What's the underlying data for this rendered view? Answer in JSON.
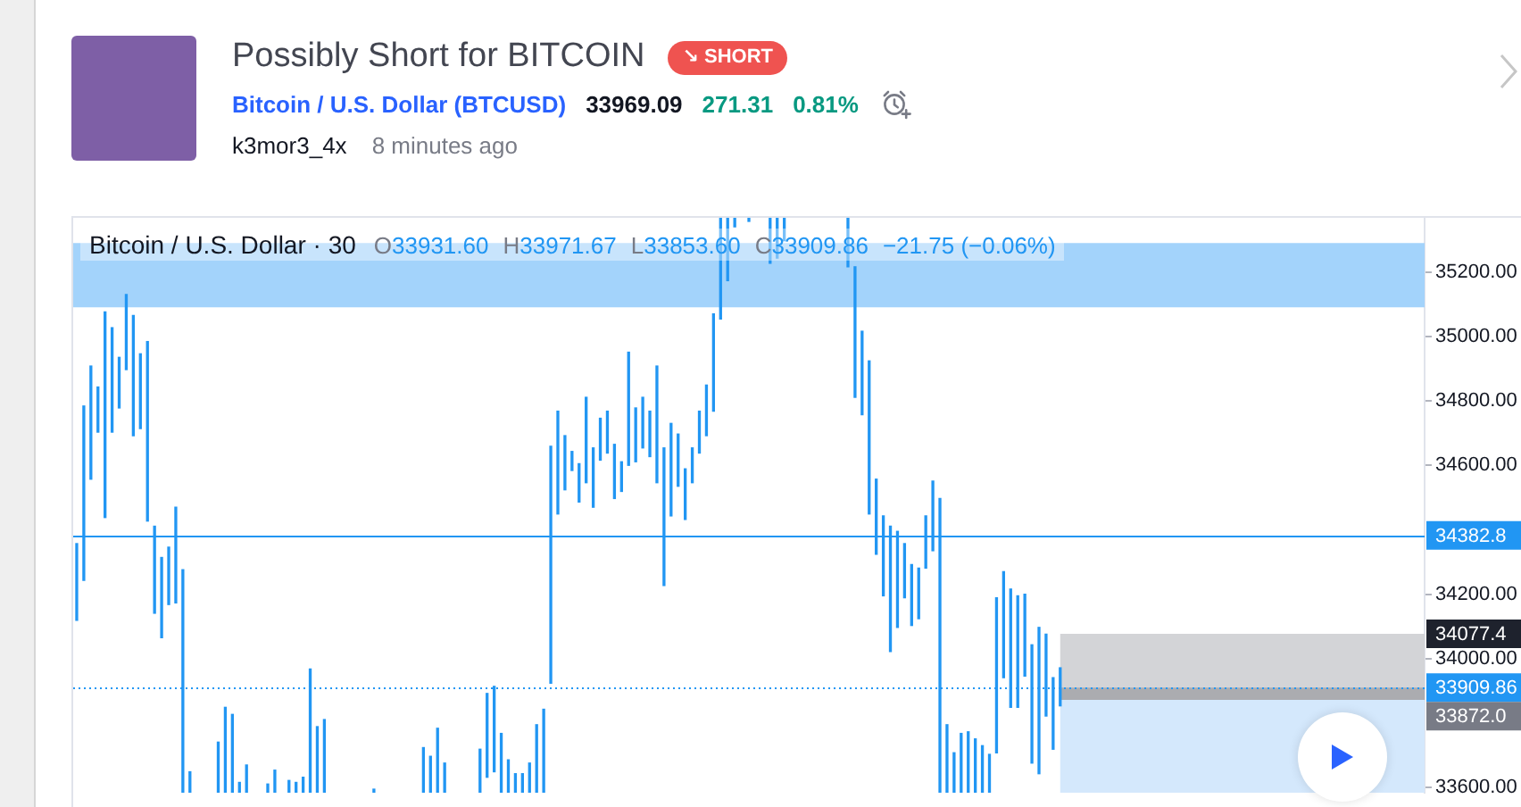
{
  "chart_data": {
    "type": "bar",
    "title": "Possibly Short for BITCOIN",
    "subtitle": "Bitcoin / U.S. Dollar (BTCUSD)",
    "annotations": [
      "↘ SHORT",
      "33969.09",
      "271.31",
      "0.81%",
      "k3mor3_4x",
      "8 minutes ago",
      "Bitcoin / U.S. Dollar · 30",
      "O33931.60",
      "H33971.67",
      "L33853.60",
      "C33909.86",
      "−21.75 (−0.06%)"
    ],
    "categories": [
      null,
      null,
      null,
      null,
      null,
      null,
      null,
      null,
      null,
      null,
      null,
      null,
      null,
      null,
      null,
      null,
      null,
      null,
      null,
      null,
      null,
      null,
      null,
      null,
      null,
      null,
      null,
      null,
      null,
      null,
      null,
      null,
      null,
      null,
      null,
      null,
      null,
      null,
      null,
      null,
      null,
      null,
      null,
      null,
      null,
      null,
      null,
      null,
      null,
      null,
      null,
      null,
      null,
      null,
      null,
      null,
      null,
      null,
      null,
      null,
      null,
      null,
      null,
      null,
      null,
      null,
      null,
      null,
      null,
      null,
      null,
      null,
      null,
      null,
      null,
      null,
      null,
      null,
      null,
      null,
      null,
      null,
      null,
      null,
      null,
      null,
      null,
      null,
      null,
      null,
      null,
      null,
      null,
      null,
      null,
      null,
      null,
      null,
      null,
      null,
      null,
      null,
      null,
      null,
      null,
      null,
      null,
      null,
      null,
      null,
      null,
      null,
      null,
      null,
      null,
      null,
      null,
      null,
      null,
      null,
      null,
      null,
      null,
      null,
      null,
      null,
      null,
      null,
      null,
      null,
      null,
      null,
      null,
      null,
      null,
      null,
      null,
      null,
      null,
      null,
      null,
      null,
      null,
      null,
      null,
      null,
      null,
      null,
      null,
      null,
      null,
      null,
      null,
      null,
      null,
      null,
      null,
      null,
      null,
      null,
      null,
      null,
      null,
      null,
      null,
      null,
      null,
      null,
      null,
      null,
      null,
      null,
      null,
      null,
      null,
      null,
      null,
      null,
      null,
      null,
      null,
      null,
      null,
      null,
      null,
      null,
      null,
      null,
      null,
      null,
      null
    ],
    "base": [
      34119,
      34243,
      34557,
      34703,
      34438,
      34703,
      34778,
      34897,
      34692,
      34714,
      34427,
      34141,
      34065,
      34168,
      34173,
      33584,
      33584,
      null,
      null,
      null,
      33584,
      33584,
      33584,
      33584,
      33584,
      null,
      null,
      33584,
      33584,
      null,
      33584,
      33584,
      33584,
      33584,
      33584,
      33584,
      null,
      null,
      null,
      null,
      null,
      null,
      33584,
      null,
      null,
      null,
      null,
      null,
      null,
      33584,
      33584,
      33584,
      33584,
      null,
      null,
      null,
      null,
      33584,
      33632,
      33649,
      33584,
      33584,
      33584,
      33584,
      33584,
      33584,
      33584,
      33924,
      34449,
      34524,
      34584,
      34486,
      34546,
      34470,
      34616,
      34638,
      34497,
      34519,
      34600,
      34611,
      34654,
      34627,
      34546,
      34227,
      34443,
      34535,
      34432,
      34546,
      34638,
      34692,
      34768,
      35054,
      35173,
      35340,
      null,
      35357,
      null,
      null,
      35227,
      35243,
      35297,
      null,
      null,
      null,
      null,
      null,
      null,
      null,
      null,
      35216,
      34811,
      34757,
      34449,
      34324,
      34195,
      34022,
      34097,
      34189,
      34103,
      34124,
      34281,
      34335,
      33584,
      33584,
      33584,
      33584,
      33584,
      33584,
      33584,
      33584,
      33708,
      33941,
      33849,
      33849,
      33946,
      33676,
      33643,
      33822,
      33719,
      33853.6,
      null,
      null,
      null,
      null,
      null,
      null,
      null,
      null,
      null,
      null,
      null,
      null,
      null,
      null,
      null,
      null,
      null,
      null,
      null,
      null,
      null,
      null,
      null,
      null,
      null,
      null,
      null,
      null,
      null,
      null,
      null,
      null,
      null,
      null,
      null,
      null,
      null,
      null,
      null,
      null,
      null,
      null,
      null,
      null,
      null,
      null,
      null,
      null,
      null,
      null,
      null
    ],
    "values": [
      238,
      541,
      351,
      140,
      638,
      324,
      157,
      233,
      373,
      232,
      557,
      270,
      249,
      178,
      297,
      692,
      65,
      null,
      null,
      null,
      157,
      265,
      243,
      32,
      86,
      null,
      null,
      27,
      70,
      null,
      38,
      32,
      48,
      384,
      205,
      227,
      null,
      null,
      null,
      null,
      null,
      null,
      11,
      null,
      null,
      null,
      null,
      null,
      null,
      140,
      113,
      200,
      92,
      null,
      null,
      null,
      null,
      135,
      260,
      265,
      184,
      102,
      59,
      59,
      92,
      211,
      259,
      735,
      319,
      168,
      59,
      119,
      265,
      184,
      130,
      130,
      168,
      92,
      351,
      167,
      157,
      141,
      362,
      427,
      287,
      162,
      157,
      108,
      130,
      157,
      302,
      314,
      195,
      28,
      null,
      11,
      null,
      null,
      141,
      125,
      71,
      null,
      null,
      null,
      null,
      null,
      null,
      null,
      null,
      152,
      405,
      259,
      475,
      233,
      248,
      389,
      298,
      168,
      189,
      157,
      162,
      216,
      913,
      211,
      124,
      184,
      189,
      167,
      146,
      119,
      481,
      329,
      367,
      346,
      254,
      367,
      454,
      254,
      222,
      118,
      null,
      null,
      null,
      null,
      null,
      null,
      null,
      null,
      null,
      null,
      null,
      null,
      null,
      null,
      null,
      null,
      null,
      null,
      null,
      null,
      null,
      null,
      null,
      null,
      null,
      null,
      null,
      null,
      null,
      null,
      null,
      null,
      null,
      null,
      null,
      null,
      null,
      null,
      null,
      null,
      null,
      null,
      null,
      null,
      null,
      null,
      null,
      null,
      null,
      null,
      null
    ],
    "color": "#2196f3",
    "ylim": [
      33584,
      35368
    ],
    "yticks": [
      {
        "value": 33600,
        "label": "33600.00"
      },
      {
        "value": 34000,
        "label": "34000.00"
      },
      {
        "value": 34200,
        "label": "34200.00"
      },
      {
        "value": 34600,
        "label": "34600.00"
      },
      {
        "value": 34800,
        "label": "34800.00"
      },
      {
        "value": 35000,
        "label": "35000.00"
      },
      {
        "value": 35200,
        "label": "35200.00"
      }
    ],
    "tick_labels": "y",
    "ref_lines": [
      {
        "axis": "y",
        "value": 34382.8,
        "label": "34382.8",
        "color": "#2196f3"
      },
      {
        "axis": "y",
        "value": 33909.86,
        "label": "33909.86",
        "color": "#2196f3",
        "line_style": "dotted"
      }
    ],
    "bands": [
      {
        "axis": "y",
        "from": 35090,
        "to": 35290,
        "color": "#a3d3fb"
      },
      {
        "axis": "y",
        "from": 33872.0,
        "to": 34077.4,
        "label": "34077.4",
        "color": "#d3d4d7"
      },
      {
        "axis": "y",
        "from": 33584,
        "to": 33872.0,
        "label": "33872.0",
        "color": "#d4e8fc"
      },
      {
        "axis": "y",
        "from": 33872.0,
        "to": 33909.86,
        "color": "#abacb0"
      }
    ]
  }
}
